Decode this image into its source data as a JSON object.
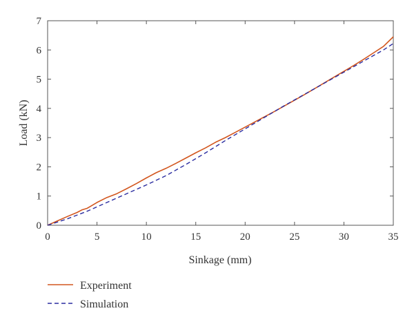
{
  "chart_data": {
    "type": "line",
    "title": "",
    "xlabel": "Sinkage (mm)",
    "ylabel": "Load (kN)",
    "xlim": [
      0,
      35
    ],
    "ylim": [
      0,
      7
    ],
    "xticks": [
      0,
      5,
      10,
      15,
      20,
      25,
      30,
      35
    ],
    "yticks": [
      0,
      1,
      2,
      3,
      4,
      5,
      6,
      7
    ],
    "grid": false,
    "legend_position": "bottom-left, below plot",
    "series": [
      {
        "name": "Experiment",
        "color": "#d2561e",
        "style": "solid",
        "x": [
          0,
          1,
          2,
          3,
          3.5,
          4,
          5,
          6,
          7,
          8,
          9,
          10,
          11,
          12,
          13,
          14,
          15,
          16,
          17,
          18,
          19,
          20,
          21,
          22,
          23,
          24,
          25,
          26,
          27,
          28,
          29,
          30,
          31,
          32,
          33,
          34,
          35
        ],
        "y": [
          0,
          0.15,
          0.3,
          0.44,
          0.53,
          0.58,
          0.78,
          0.95,
          1.08,
          1.25,
          1.43,
          1.62,
          1.8,
          1.95,
          2.12,
          2.3,
          2.48,
          2.65,
          2.84,
          3.0,
          3.18,
          3.36,
          3.54,
          3.72,
          3.9,
          4.09,
          4.28,
          4.47,
          4.67,
          4.87,
          5.07,
          5.27,
          5.47,
          5.68,
          5.9,
          6.12,
          6.45
        ]
      },
      {
        "name": "Simulation",
        "color": "#2a2ca0",
        "style": "dashed",
        "x": [
          0,
          2,
          4,
          6,
          8,
          10,
          12,
          14,
          16,
          18,
          20,
          22,
          24,
          26,
          28,
          30,
          32,
          34,
          35
        ],
        "y": [
          0,
          0.22,
          0.48,
          0.78,
          1.08,
          1.38,
          1.7,
          2.08,
          2.48,
          2.9,
          3.3,
          3.7,
          4.1,
          4.48,
          4.86,
          5.24,
          5.62,
          6.0,
          6.22
        ]
      }
    ]
  }
}
